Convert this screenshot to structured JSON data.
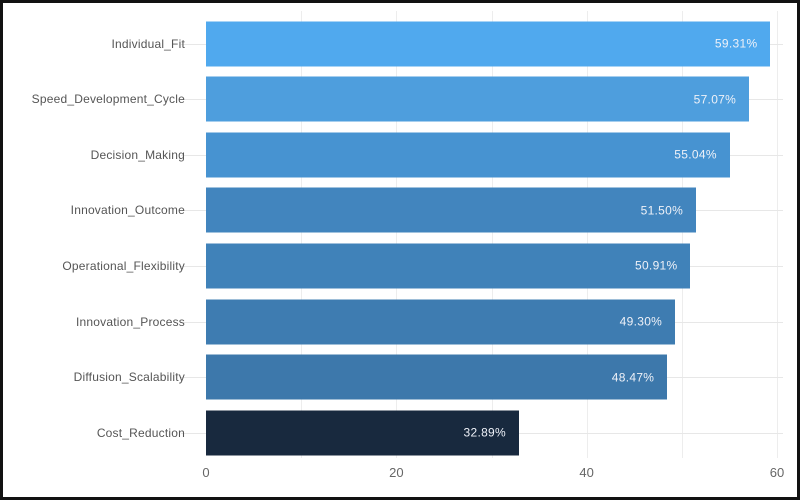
{
  "chart_data": {
    "type": "bar",
    "orientation": "horizontal",
    "title": "",
    "xlabel": "",
    "ylabel": "",
    "categories": [
      "Individual_Fit",
      "Speed_Development_Cycle",
      "Decision_Making",
      "Innovation_Outcome",
      "Operational_Flexibility",
      "Innovation_Process",
      "Diffusion_Scalability",
      "Cost_Reduction"
    ],
    "values": [
      59.31,
      57.07,
      55.04,
      51.5,
      50.91,
      49.3,
      48.47,
      32.89
    ],
    "value_labels": [
      "59.31%",
      "57.07%",
      "55.04%",
      "51.50%",
      "50.91%",
      "49.30%",
      "48.47%",
      "32.89%"
    ],
    "bar_colors": [
      "#50a9ee",
      "#4e9edd",
      "#4793d1",
      "#4285be",
      "#4082b9",
      "#3e7cb1",
      "#3d78ab",
      "#18293e"
    ],
    "x_ticks": [
      0,
      20,
      40,
      60
    ],
    "x_gridlines": [
      10,
      20,
      30,
      40,
      50,
      60
    ],
    "xlim": [
      0,
      61
    ],
    "grid": "on",
    "legend": "none",
    "colors": {
      "background": "#ffffff",
      "frame": "#121212",
      "gridline": "#ededed",
      "category_gridline": "#e7e7e7",
      "category_label": "#555555",
      "tick_label": "#666666",
      "value_label": "#eef1f8"
    }
  }
}
